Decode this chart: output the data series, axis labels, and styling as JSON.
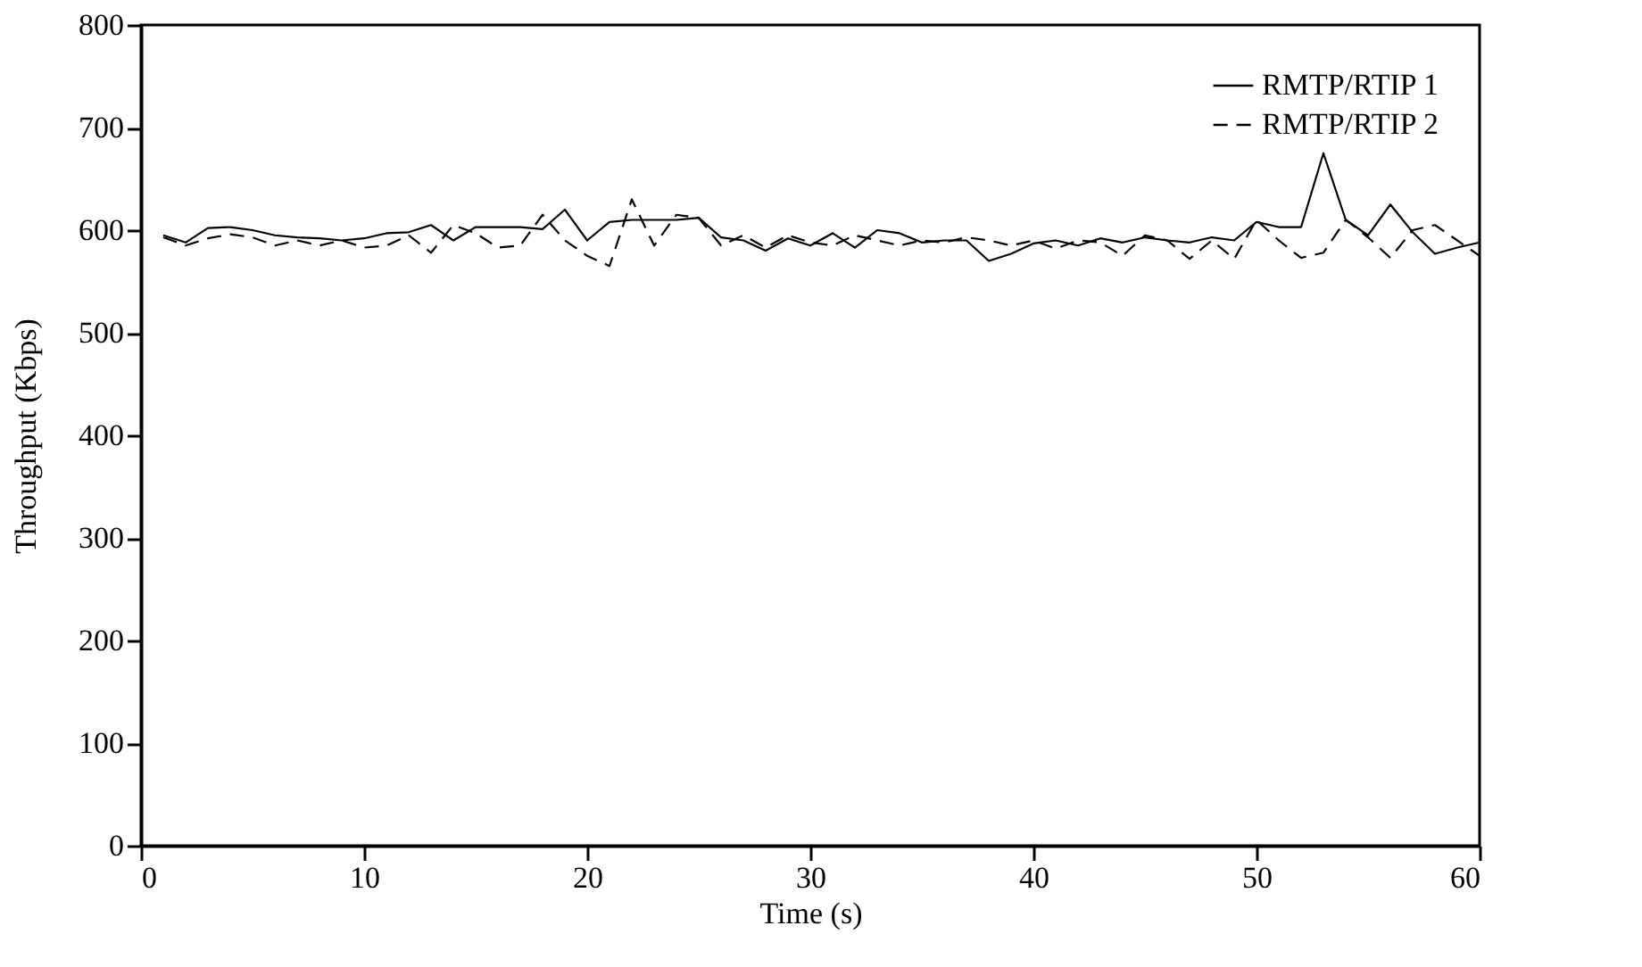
{
  "chart_data": {
    "type": "line",
    "xlabel": "Time (s)",
    "ylabel": "Throughput (Kbps)",
    "xlim": [
      0,
      60
    ],
    "xticks": [
      0,
      10,
      20,
      30,
      40,
      50,
      60
    ],
    "ylim": [
      0,
      800
    ],
    "yticks": [
      0,
      100,
      200,
      300,
      400,
      500,
      600,
      700,
      800
    ],
    "grid": false,
    "legend": "top right",
    "marker": "none",
    "x": [
      1,
      2,
      3,
      4,
      5,
      6,
      7,
      8,
      9,
      10,
      11,
      12,
      13,
      14,
      15,
      16,
      17,
      18,
      19,
      20,
      21,
      22,
      23,
      24,
      25,
      26,
      27,
      28,
      29,
      30,
      31,
      32,
      33,
      34,
      35,
      36,
      37,
      38,
      39,
      40,
      41,
      42,
      43,
      44,
      45,
      46,
      47,
      48,
      49,
      50,
      51,
      52,
      53,
      54,
      55,
      56,
      57,
      58,
      59,
      60
    ],
    "series": [
      {
        "name": "RMTP/RTIP 1",
        "color": "#000000",
        "line_style": "solid",
        "values": [
          595,
          588,
          602,
          603,
          600,
          595,
          593,
          592,
          590,
          592,
          597,
          598,
          605,
          590,
          603,
          603,
          603,
          601,
          620,
          590,
          608,
          610,
          610,
          610,
          612,
          593,
          590,
          580,
          592,
          585,
          597,
          583,
          600,
          597,
          588,
          590,
          590,
          570,
          577,
          587,
          590,
          585,
          592,
          588,
          593,
          590,
          588,
          593,
          590,
          608,
          603,
          603,
          675,
          610,
          595,
          625,
          598,
          577,
          583,
          588
        ]
      },
      {
        "name": "RMTP/RTIP 2",
        "color": "#000000",
        "line_style": "dashed",
        "values": [
          593,
          585,
          592,
          596,
          593,
          585,
          590,
          585,
          590,
          583,
          585,
          595,
          578,
          605,
          597,
          583,
          585,
          615,
          590,
          575,
          565,
          630,
          585,
          615,
          612,
          585,
          595,
          583,
          595,
          588,
          585,
          595,
          590,
          585,
          590,
          588,
          593,
          590,
          585,
          590,
          582,
          590,
          588,
          575,
          595,
          590,
          572,
          590,
          572,
          610,
          590,
          573,
          578,
          610,
          593,
          573,
          600,
          605,
          590,
          575
        ]
      }
    ]
  }
}
